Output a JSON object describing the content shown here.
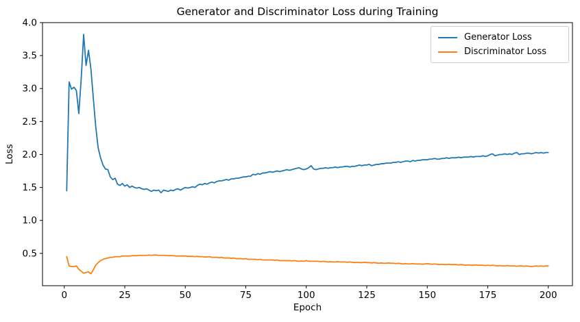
{
  "chart_data": {
    "type": "line",
    "title": "Generator and Discriminator Loss during Training",
    "xlabel": "Epoch",
    "ylabel": "Loss",
    "xlim": [
      -9,
      210
    ],
    "ylim": [
      0.01,
      4.0
    ],
    "xticks": [
      0,
      25,
      50,
      75,
      100,
      125,
      150,
      175,
      200
    ],
    "xtick_labels": [
      "0",
      "25",
      "50",
      "75",
      "100",
      "125",
      "150",
      "175",
      "200"
    ],
    "yticks": [
      0.5,
      1.0,
      1.5,
      2.0,
      2.5,
      3.0,
      3.5,
      4.0
    ],
    "ytick_labels": [
      "0.5",
      "1.0",
      "1.5",
      "2.0",
      "2.5",
      "3.0",
      "3.5",
      "4.0"
    ],
    "grid": false,
    "legend_position": "upper right",
    "epochs": [
      1,
      2,
      3,
      4,
      5,
      6,
      7,
      8,
      9,
      10,
      11,
      12,
      13,
      14,
      15,
      16,
      17,
      18,
      19,
      20,
      21,
      22,
      23,
      24,
      25,
      26,
      27,
      28,
      29,
      30,
      31,
      32,
      33,
      34,
      35,
      36,
      37,
      38,
      39,
      40,
      41,
      42,
      43,
      44,
      45,
      46,
      47,
      48,
      49,
      50,
      51,
      52,
      53,
      54,
      55,
      56,
      57,
      58,
      59,
      60,
      61,
      62,
      63,
      64,
      65,
      66,
      67,
      68,
      69,
      70,
      71,
      72,
      73,
      74,
      75,
      76,
      77,
      78,
      79,
      80,
      81,
      82,
      83,
      84,
      85,
      86,
      87,
      88,
      89,
      90,
      91,
      92,
      93,
      94,
      95,
      96,
      97,
      98,
      99,
      100,
      101,
      102,
      103,
      104,
      105,
      106,
      107,
      108,
      109,
      110,
      111,
      112,
      113,
      114,
      115,
      116,
      117,
      118,
      119,
      120,
      121,
      122,
      123,
      124,
      125,
      126,
      127,
      128,
      129,
      130,
      131,
      132,
      133,
      134,
      135,
      136,
      137,
      138,
      139,
      140,
      141,
      142,
      143,
      144,
      145,
      146,
      147,
      148,
      149,
      150,
      151,
      152,
      153,
      154,
      155,
      156,
      157,
      158,
      159,
      160,
      161,
      162,
      163,
      164,
      165,
      166,
      167,
      168,
      169,
      170,
      171,
      172,
      173,
      174,
      175,
      176,
      177,
      178,
      179,
      180,
      181,
      182,
      183,
      184,
      185,
      186,
      187,
      188,
      189,
      190,
      191,
      192,
      193,
      194,
      195,
      196,
      197,
      198,
      199,
      200
    ],
    "series": [
      {
        "name": "Generator Loss",
        "color": "#1f77b4",
        "values": [
          1.45,
          3.1,
          2.99,
          3.02,
          2.97,
          2.62,
          3.15,
          3.82,
          3.35,
          3.58,
          3.3,
          2.85,
          2.42,
          2.1,
          1.95,
          1.84,
          1.78,
          1.77,
          1.66,
          1.62,
          1.64,
          1.55,
          1.53,
          1.56,
          1.52,
          1.54,
          1.5,
          1.52,
          1.5,
          1.49,
          1.5,
          1.48,
          1.47,
          1.48,
          1.46,
          1.44,
          1.46,
          1.45,
          1.46,
          1.42,
          1.46,
          1.45,
          1.44,
          1.46,
          1.45,
          1.47,
          1.48,
          1.46,
          1.48,
          1.5,
          1.49,
          1.5,
          1.51,
          1.5,
          1.53,
          1.55,
          1.54,
          1.56,
          1.55,
          1.57,
          1.58,
          1.57,
          1.59,
          1.6,
          1.6,
          1.61,
          1.62,
          1.61,
          1.63,
          1.63,
          1.64,
          1.64,
          1.65,
          1.66,
          1.66,
          1.67,
          1.67,
          1.7,
          1.69,
          1.71,
          1.7,
          1.72,
          1.72,
          1.73,
          1.74,
          1.73,
          1.74,
          1.75,
          1.74,
          1.75,
          1.76,
          1.77,
          1.76,
          1.77,
          1.78,
          1.79,
          1.8,
          1.78,
          1.77,
          1.78,
          1.8,
          1.83,
          1.78,
          1.77,
          1.78,
          1.79,
          1.79,
          1.8,
          1.79,
          1.8,
          1.8,
          1.81,
          1.8,
          1.81,
          1.81,
          1.82,
          1.82,
          1.81,
          1.82,
          1.82,
          1.83,
          1.84,
          1.83,
          1.84,
          1.84,
          1.85,
          1.83,
          1.84,
          1.85,
          1.85,
          1.86,
          1.86,
          1.87,
          1.87,
          1.87,
          1.88,
          1.88,
          1.89,
          1.88,
          1.89,
          1.9,
          1.9,
          1.89,
          1.91,
          1.9,
          1.91,
          1.91,
          1.92,
          1.92,
          1.92,
          1.93,
          1.93,
          1.94,
          1.93,
          1.93,
          1.94,
          1.94,
          1.95,
          1.94,
          1.95,
          1.95,
          1.95,
          1.96,
          1.95,
          1.96,
          1.96,
          1.96,
          1.97,
          1.96,
          1.97,
          1.97,
          1.97,
          1.98,
          1.97,
          1.98,
          2.0,
          2.01,
          1.98,
          1.99,
          2.0,
          2.0,
          2.01,
          2.0,
          2.01,
          2.0,
          2.02,
          2.03,
          2.0,
          2.01,
          2.01,
          2.02,
          2.02,
          2.01,
          2.02,
          2.03,
          2.02,
          2.03,
          2.02,
          2.03,
          2.03
        ]
      },
      {
        "name": "Discriminator Loss",
        "color": "#ff7f0e",
        "values": [
          0.45,
          0.31,
          0.3,
          0.3,
          0.31,
          0.26,
          0.23,
          0.2,
          0.21,
          0.22,
          0.19,
          0.25,
          0.32,
          0.36,
          0.39,
          0.41,
          0.42,
          0.43,
          0.44,
          0.44,
          0.45,
          0.45,
          0.45,
          0.46,
          0.46,
          0.46,
          0.46,
          0.465,
          0.465,
          0.465,
          0.47,
          0.47,
          0.47,
          0.47,
          0.475,
          0.47,
          0.475,
          0.475,
          0.47,
          0.47,
          0.47,
          0.47,
          0.465,
          0.465,
          0.465,
          0.46,
          0.46,
          0.46,
          0.46,
          0.46,
          0.455,
          0.455,
          0.455,
          0.45,
          0.455,
          0.45,
          0.45,
          0.445,
          0.445,
          0.45,
          0.44,
          0.44,
          0.44,
          0.435,
          0.44,
          0.43,
          0.43,
          0.43,
          0.425,
          0.43,
          0.42,
          0.42,
          0.42,
          0.415,
          0.42,
          0.41,
          0.41,
          0.41,
          0.41,
          0.405,
          0.41,
          0.4,
          0.4,
          0.4,
          0.4,
          0.4,
          0.395,
          0.4,
          0.39,
          0.39,
          0.39,
          0.39,
          0.39,
          0.385,
          0.39,
          0.385,
          0.38,
          0.385,
          0.38,
          0.39,
          0.38,
          0.38,
          0.38,
          0.38,
          0.38,
          0.375,
          0.38,
          0.375,
          0.37,
          0.375,
          0.37,
          0.37,
          0.375,
          0.37,
          0.37,
          0.37,
          0.365,
          0.37,
          0.365,
          0.36,
          0.365,
          0.36,
          0.36,
          0.365,
          0.36,
          0.36,
          0.355,
          0.36,
          0.355,
          0.35,
          0.355,
          0.35,
          0.35,
          0.355,
          0.35,
          0.35,
          0.345,
          0.35,
          0.345,
          0.34,
          0.345,
          0.34,
          0.34,
          0.345,
          0.34,
          0.34,
          0.34,
          0.335,
          0.34,
          0.345,
          0.34,
          0.335,
          0.34,
          0.335,
          0.33,
          0.335,
          0.33,
          0.33,
          0.335,
          0.33,
          0.33,
          0.33,
          0.325,
          0.33,
          0.325,
          0.32,
          0.325,
          0.32,
          0.32,
          0.325,
          0.32,
          0.32,
          0.32,
          0.315,
          0.32,
          0.315,
          0.32,
          0.315,
          0.31,
          0.315,
          0.31,
          0.31,
          0.315,
          0.31,
          0.31,
          0.31,
          0.305,
          0.31,
          0.31,
          0.305,
          0.31,
          0.305,
          0.3,
          0.305,
          0.31,
          0.305,
          0.31,
          0.305,
          0.31,
          0.31
        ]
      }
    ]
  }
}
